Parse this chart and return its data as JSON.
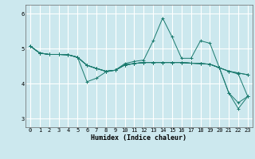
{
  "xlabel": "Humidex (Indice chaleur)",
  "background_color": "#cce8ee",
  "grid_color": "#ffffff",
  "line_color": "#1a7a6e",
  "xlim": [
    -0.5,
    23.5
  ],
  "ylim": [
    2.75,
    6.25
  ],
  "yticks": [
    3,
    4,
    5,
    6
  ],
  "xticks": [
    0,
    1,
    2,
    3,
    4,
    5,
    6,
    7,
    8,
    9,
    10,
    11,
    12,
    13,
    14,
    15,
    16,
    17,
    18,
    19,
    20,
    21,
    22,
    23
  ],
  "lines": [
    [
      5.07,
      4.87,
      4.83,
      4.83,
      4.82,
      4.75,
      4.05,
      4.15,
      4.33,
      4.38,
      4.57,
      4.63,
      4.67,
      5.22,
      5.87,
      5.33,
      4.72,
      4.72,
      5.22,
      5.15,
      4.45,
      3.73,
      3.45,
      3.63
    ],
    [
      5.07,
      4.87,
      4.83,
      4.83,
      4.82,
      4.75,
      4.52,
      4.43,
      4.35,
      4.38,
      4.53,
      4.57,
      4.6,
      4.6,
      4.6,
      4.6,
      4.6,
      4.58,
      4.57,
      4.55,
      4.45,
      4.35,
      4.3,
      4.25
    ],
    [
      5.07,
      4.87,
      4.83,
      4.83,
      4.82,
      4.75,
      4.52,
      4.43,
      4.35,
      4.38,
      4.53,
      4.57,
      4.6,
      4.6,
      4.6,
      4.6,
      4.6,
      4.58,
      4.57,
      4.55,
      4.45,
      4.35,
      4.3,
      4.25
    ],
    [
      5.07,
      4.87,
      4.83,
      4.83,
      4.82,
      4.75,
      4.52,
      4.43,
      4.35,
      4.38,
      4.53,
      4.57,
      4.6,
      4.6,
      4.6,
      4.6,
      4.6,
      4.58,
      4.57,
      4.55,
      4.45,
      4.35,
      4.27,
      3.63
    ],
    [
      5.07,
      4.87,
      4.83,
      4.83,
      4.82,
      4.75,
      4.52,
      4.43,
      4.35,
      4.38,
      4.53,
      4.57,
      4.6,
      4.6,
      4.6,
      4.6,
      4.6,
      4.58,
      4.57,
      4.55,
      4.45,
      3.73,
      3.28,
      3.63
    ]
  ]
}
